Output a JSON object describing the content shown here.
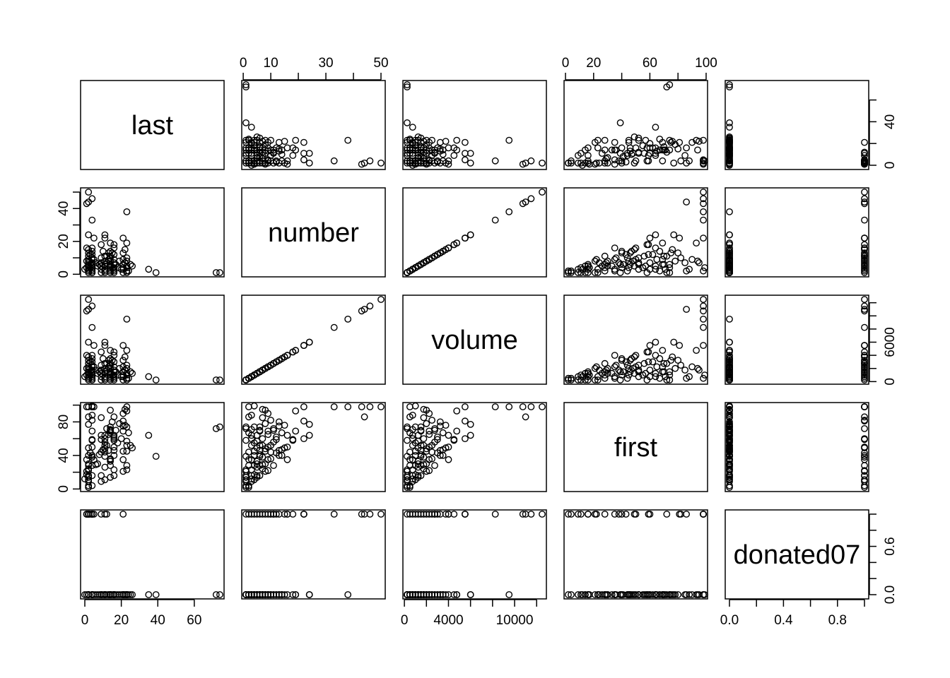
{
  "chart_data": {
    "type": "scatter-matrix",
    "variables": [
      "last",
      "number",
      "volume",
      "first",
      "donated07"
    ],
    "ranges": {
      "last": [
        0,
        74
      ],
      "number": [
        1,
        50
      ],
      "volume": [
        250,
        12500
      ],
      "first": [
        2,
        98
      ],
      "donated07": [
        0,
        1
      ]
    },
    "axes": {
      "last": {
        "ticks": [
          0,
          20,
          40,
          60
        ],
        "side": "bottom"
      },
      "number": {
        "ticks": [
          0,
          10,
          20,
          30,
          40,
          50
        ],
        "labels": [
          "0",
          "10",
          "",
          "30",
          "",
          "50"
        ],
        "side": "top"
      },
      "volume": {
        "ticks": [
          0,
          2000,
          4000,
          6000,
          8000,
          10000,
          12000
        ],
        "labels": [
          "0",
          "",
          "4000",
          "",
          "",
          "10000",
          ""
        ],
        "side": "bottom"
      },
      "first": {
        "ticks": [
          0,
          20,
          40,
          60,
          80,
          100
        ],
        "labels": [
          "0",
          "20",
          "",
          "60",
          "",
          "100"
        ],
        "side": "top"
      },
      "donated07": {
        "ticks": [
          0,
          0.2,
          0.4,
          0.6,
          0.8,
          1.0
        ],
        "labels": [
          "0.0",
          "",
          "0.4",
          "",
          "0.8",
          ""
        ],
        "side": "bottom"
      },
      "last_y": {
        "ticks": [
          0,
          20,
          40,
          60
        ],
        "labels": [
          "0",
          "",
          "40",
          ""
        ],
        "side": "right"
      },
      "number_y": {
        "ticks": [
          0,
          10,
          20,
          30,
          40,
          50
        ],
        "labels": [
          "0",
          "",
          "20",
          "",
          "40",
          ""
        ],
        "side": "left"
      },
      "volume_y": {
        "ticks": [
          0,
          2000,
          4000,
          6000,
          8000,
          10000,
          12000
        ],
        "labels": [
          "0",
          "",
          "",
          "6000",
          "",
          "",
          ""
        ],
        "side": "right"
      },
      "first_y": {
        "ticks": [
          0,
          20,
          40,
          60,
          80,
          100
        ],
        "labels": [
          "0",
          "",
          "40",
          "",
          "80",
          ""
        ],
        "side": "left"
      },
      "donated07_y": {
        "ticks": [
          0,
          0.2,
          0.4,
          0.6,
          0.8,
          1.0
        ],
        "labels": [
          "0.0",
          "",
          "",
          "0.6",
          "",
          ""
        ],
        "side": "right"
      }
    },
    "points": [
      [
        74,
        1,
        250,
        74,
        0
      ],
      [
        72,
        1,
        250,
        72,
        0
      ],
      [
        39,
        1,
        250,
        39,
        0
      ],
      [
        35,
        3,
        750,
        64,
        0
      ],
      [
        23,
        38,
        9500,
        98,
        0
      ],
      [
        2,
        50,
        12500,
        98,
        1
      ],
      [
        4,
        46,
        11500,
        98,
        1
      ],
      [
        2,
        44,
        11000,
        86,
        1
      ],
      [
        1,
        43,
        10750,
        98,
        1
      ],
      [
        4,
        33,
        8250,
        98,
        1
      ],
      [
        2,
        24,
        6000,
        77,
        0
      ],
      [
        5,
        22,
        5500,
        98,
        1
      ],
      [
        11,
        24,
        6000,
        64,
        0
      ],
      [
        11,
        22,
        5500,
        60,
        1
      ],
      [
        21,
        22,
        5500,
        81,
        1
      ],
      [
        14,
        19,
        4750,
        69,
        0
      ],
      [
        23,
        19,
        4750,
        93,
        0
      ],
      [
        9,
        18,
        4500,
        59,
        1
      ],
      [
        16,
        18,
        4500,
        58,
        0
      ],
      [
        1,
        16,
        4000,
        35,
        1
      ],
      [
        4,
        16,
        4000,
        50,
        1
      ],
      [
        16,
        16,
        4000,
        64,
        0
      ],
      [
        2,
        15,
        3750,
        49,
        1
      ],
      [
        22,
        15,
        3750,
        76,
        0
      ],
      [
        4,
        14,
        3500,
        40,
        0
      ],
      [
        10,
        14,
        3500,
        47,
        0
      ],
      [
        14,
        14,
        3500,
        67,
        0
      ],
      [
        21,
        13,
        3250,
        75,
        0
      ],
      [
        2,
        13,
        3250,
        40,
        1
      ],
      [
        13,
        13,
        3250,
        46,
        0
      ],
      [
        4,
        12,
        3000,
        59,
        0
      ],
      [
        16,
        12,
        3000,
        62,
        0
      ],
      [
        14,
        11,
        2750,
        70,
        0
      ],
      [
        2,
        11,
        2750,
        28,
        1
      ],
      [
        11,
        11,
        2750,
        56,
        0
      ],
      [
        23,
        10,
        2500,
        52,
        0
      ],
      [
        4,
        10,
        2500,
        82,
        1
      ],
      [
        9,
        10,
        2500,
        44,
        0
      ],
      [
        14,
        10,
        2500,
        36,
        0
      ],
      [
        2,
        9,
        2250,
        22,
        1
      ],
      [
        16,
        9,
        2250,
        50,
        0
      ],
      [
        21,
        9,
        2250,
        90,
        0
      ],
      [
        4,
        9,
        2250,
        69,
        0
      ],
      [
        11,
        8,
        2000,
        48,
        0
      ],
      [
        1,
        8,
        2000,
        21,
        1
      ],
      [
        14,
        8,
        2000,
        94,
        0
      ],
      [
        23,
        8,
        2000,
        45,
        0
      ],
      [
        2,
        8,
        2000,
        30,
        0
      ],
      [
        16,
        7,
        1750,
        60,
        0
      ],
      [
        4,
        7,
        1750,
        38,
        1
      ],
      [
        9,
        7,
        1750,
        85,
        0
      ],
      [
        12,
        7,
        1750,
        52,
        0
      ],
      [
        2,
        7,
        1750,
        24,
        0
      ],
      [
        21,
        6,
        1500,
        69,
        0
      ],
      [
        14,
        6,
        1500,
        74,
        0
      ],
      [
        4,
        6,
        1500,
        28,
        0
      ],
      [
        11,
        6,
        1500,
        39,
        0
      ],
      [
        2,
        6,
        1500,
        16,
        1
      ],
      [
        16,
        6,
        1500,
        46,
        0
      ],
      [
        23,
        5,
        1250,
        57,
        0
      ],
      [
        4,
        5,
        1250,
        16,
        1
      ],
      [
        14,
        5,
        1250,
        33,
        0
      ],
      [
        2,
        5,
        1250,
        14,
        0
      ],
      [
        9,
        5,
        1250,
        64,
        0
      ],
      [
        11,
        5,
        1250,
        26,
        0
      ],
      [
        21,
        4,
        1000,
        45,
        0
      ],
      [
        4,
        4,
        1000,
        99,
        0
      ],
      [
        16,
        4,
        1000,
        40,
        0
      ],
      [
        2,
        4,
        1000,
        11,
        1
      ],
      [
        14,
        4,
        1000,
        28,
        0
      ],
      [
        23,
        4,
        1000,
        74,
        0
      ],
      [
        11,
        3,
        750,
        52,
        0
      ],
      [
        2,
        3,
        750,
        9,
        1
      ],
      [
        4,
        3,
        750,
        88,
        0
      ],
      [
        16,
        3,
        750,
        23,
        0
      ],
      [
        21,
        3,
        750,
        35,
        0
      ],
      [
        9,
        3,
        750,
        16,
        0
      ],
      [
        14,
        3,
        750,
        71,
        0
      ],
      [
        2,
        2,
        500,
        4,
        0
      ],
      [
        4,
        2,
        500,
        98,
        0
      ],
      [
        11,
        2,
        500,
        44,
        0
      ],
      [
        16,
        2,
        500,
        86,
        0
      ],
      [
        23,
        2,
        500,
        28,
        0
      ],
      [
        14,
        2,
        500,
        35,
        0
      ],
      [
        2,
        2,
        500,
        2,
        1
      ],
      [
        4,
        1,
        250,
        4,
        1
      ],
      [
        11,
        1,
        250,
        11,
        0
      ],
      [
        14,
        1,
        250,
        14,
        0
      ],
      [
        16,
        1,
        250,
        16,
        0
      ],
      [
        21,
        1,
        250,
        21,
        0
      ],
      [
        23,
        1,
        250,
        23,
        0
      ],
      [
        2,
        1,
        250,
        2,
        0
      ],
      [
        9,
        1,
        250,
        9,
        0
      ],
      [
        4,
        1,
        250,
        58,
        0
      ],
      [
        25,
        6,
        1500,
        52,
        0
      ],
      [
        26,
        5,
        1250,
        49,
        0
      ],
      [
        0,
        3,
        750,
        12,
        0
      ],
      [
        1,
        4,
        1000,
        17,
        0
      ],
      [
        3,
        12,
        3000,
        43,
        1
      ],
      [
        5,
        9,
        2250,
        35,
        0
      ],
      [
        6,
        7,
        1750,
        29,
        0
      ],
      [
        7,
        5,
        1250,
        30,
        0
      ],
      [
        8,
        6,
        1500,
        41,
        0
      ],
      [
        12,
        11,
        2750,
        72,
        1
      ],
      [
        13,
        9,
        2250,
        65,
        0
      ],
      [
        15,
        13,
        3250,
        80,
        0
      ],
      [
        17,
        6,
        1500,
        70,
        0
      ],
      [
        18,
        4,
        1000,
        55,
        0
      ],
      [
        19,
        8,
        2000,
        78,
        0
      ],
      [
        20,
        3,
        750,
        60,
        0
      ],
      [
        22,
        7,
        1750,
        95,
        0
      ],
      [
        24,
        2,
        500,
        67,
        0
      ]
    ]
  }
}
